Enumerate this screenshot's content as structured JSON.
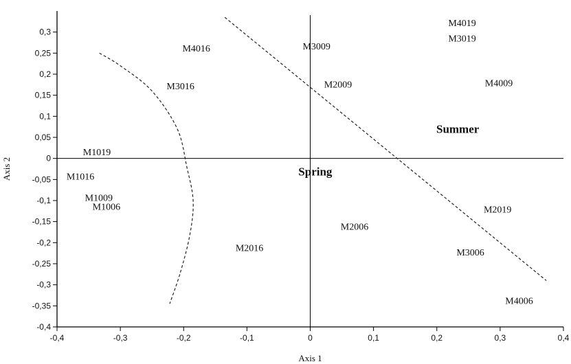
{
  "chart_data": {
    "type": "scatter",
    "xlabel": "Axis 1",
    "ylabel": "Axis 2",
    "xlim": [
      -0.4,
      0.4
    ],
    "ylim": [
      -0.4,
      0.35
    ],
    "xticks": [
      -0.4,
      -0.3,
      -0.2,
      -0.1,
      0,
      0.1,
      0.2,
      0.3,
      0.4
    ],
    "xtick_labels": [
      "-0,4",
      "-0,3",
      "-0,2",
      "-0,1",
      "0",
      "0,1",
      "0,2",
      "0,3",
      "0,4"
    ],
    "yticks": [
      0.3,
      0.25,
      0.2,
      0.15,
      0.1,
      0.05,
      0,
      -0.05,
      -0.1,
      -0.15,
      -0.2,
      -0.25,
      -0.3,
      -0.35,
      -0.4
    ],
    "ytick_labels": [
      "0,3",
      "0,25",
      "0,2",
      "0,15",
      "0,1",
      "0,05",
      "0",
      "-0,05",
      "-0,1",
      "-0,15",
      "-0,2",
      "-0,25",
      "-0,3",
      "-0,35",
      "-0,4"
    ],
    "points": [
      {
        "label": "M4019",
        "x": 0.24,
        "y": 0.322
      },
      {
        "label": "M3019",
        "x": 0.24,
        "y": 0.286
      },
      {
        "label": "M4016",
        "x": -0.18,
        "y": 0.262
      },
      {
        "label": "M3009",
        "x": 0.01,
        "y": 0.267
      },
      {
        "label": "M4009",
        "x": 0.298,
        "y": 0.18
      },
      {
        "label": "M2009",
        "x": 0.044,
        "y": 0.176
      },
      {
        "label": "M3016",
        "x": -0.205,
        "y": 0.172
      },
      {
        "label": "M1019",
        "x": -0.337,
        "y": 0.016
      },
      {
        "label": "M1016",
        "x": -0.363,
        "y": -0.042
      },
      {
        "label": "M1009",
        "x": -0.334,
        "y": -0.093
      },
      {
        "label": "M1006",
        "x": -0.322,
        "y": -0.114
      },
      {
        "label": "M2019",
        "x": 0.296,
        "y": -0.12
      },
      {
        "label": "M2006",
        "x": 0.07,
        "y": -0.161
      },
      {
        "label": "M2016",
        "x": -0.096,
        "y": -0.212
      },
      {
        "label": "M3006",
        "x": 0.253,
        "y": -0.222
      },
      {
        "label": "M4006",
        "x": 0.33,
        "y": -0.337
      }
    ],
    "region_labels": [
      {
        "label": "Summer",
        "x": 0.233,
        "y": 0.07
      },
      {
        "label": "Spring",
        "x": 0.008,
        "y": -0.031
      }
    ],
    "boundaries": [
      {
        "style": "dashed",
        "points": [
          [
            -0.333,
            0.25
          ],
          [
            -0.3,
            0.22
          ],
          [
            -0.25,
            0.16
          ],
          [
            -0.21,
            0.07
          ],
          [
            -0.195,
            -0.02
          ],
          [
            -0.185,
            -0.1
          ],
          [
            -0.19,
            -0.18
          ],
          [
            -0.205,
            -0.27
          ],
          [
            -0.222,
            -0.345
          ]
        ]
      },
      {
        "style": "dashed",
        "points": [
          [
            -0.135,
            0.335
          ],
          [
            0.373,
            -0.29
          ]
        ]
      }
    ]
  }
}
